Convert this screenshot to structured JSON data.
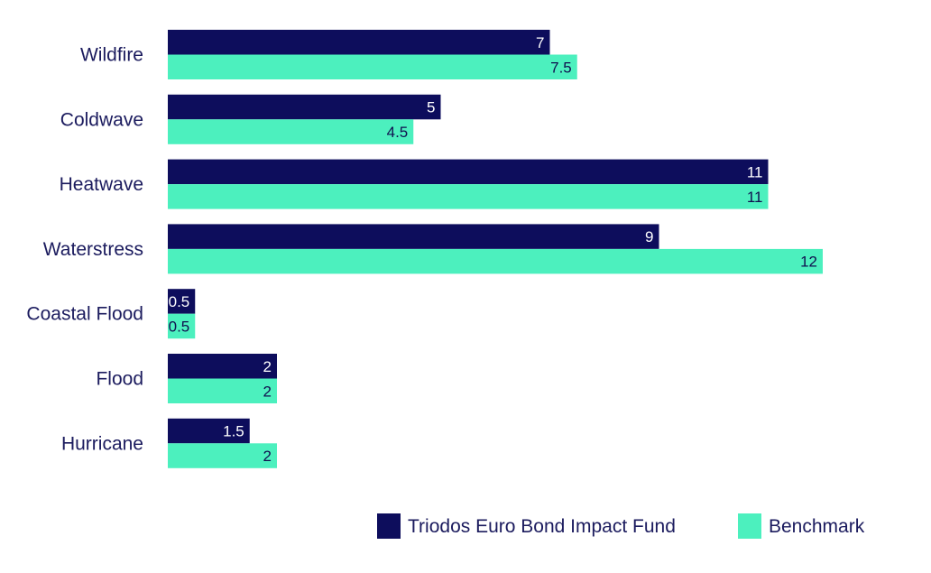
{
  "chart_data": {
    "type": "bar",
    "orientation": "horizontal",
    "categories": [
      "Wildfire",
      "Coldwave",
      "Heatwave",
      "Waterstress",
      "Coastal Flood",
      "Flood",
      "Hurricane"
    ],
    "series": [
      {
        "name": "Triodos Euro Bond Impact Fund",
        "color": "#0d0d5c",
        "values": [
          7,
          5,
          11,
          9,
          0.5,
          2,
          1.5
        ],
        "labels": [
          "7",
          "5",
          "11",
          "9",
          "0.5",
          "2",
          "1.5"
        ]
      },
      {
        "name": "Benchmark",
        "color": "#4cf0be",
        "values": [
          7.5,
          4.5,
          11,
          12,
          0.5,
          2,
          2
        ],
        "labels": [
          "7.5",
          "4.5",
          "11",
          "12",
          "0.5",
          "2",
          "2"
        ]
      }
    ],
    "xlim": [
      0,
      12
    ],
    "grid": false,
    "legend_position": "bottom-right",
    "title": "",
    "xlabel": "",
    "ylabel": ""
  }
}
